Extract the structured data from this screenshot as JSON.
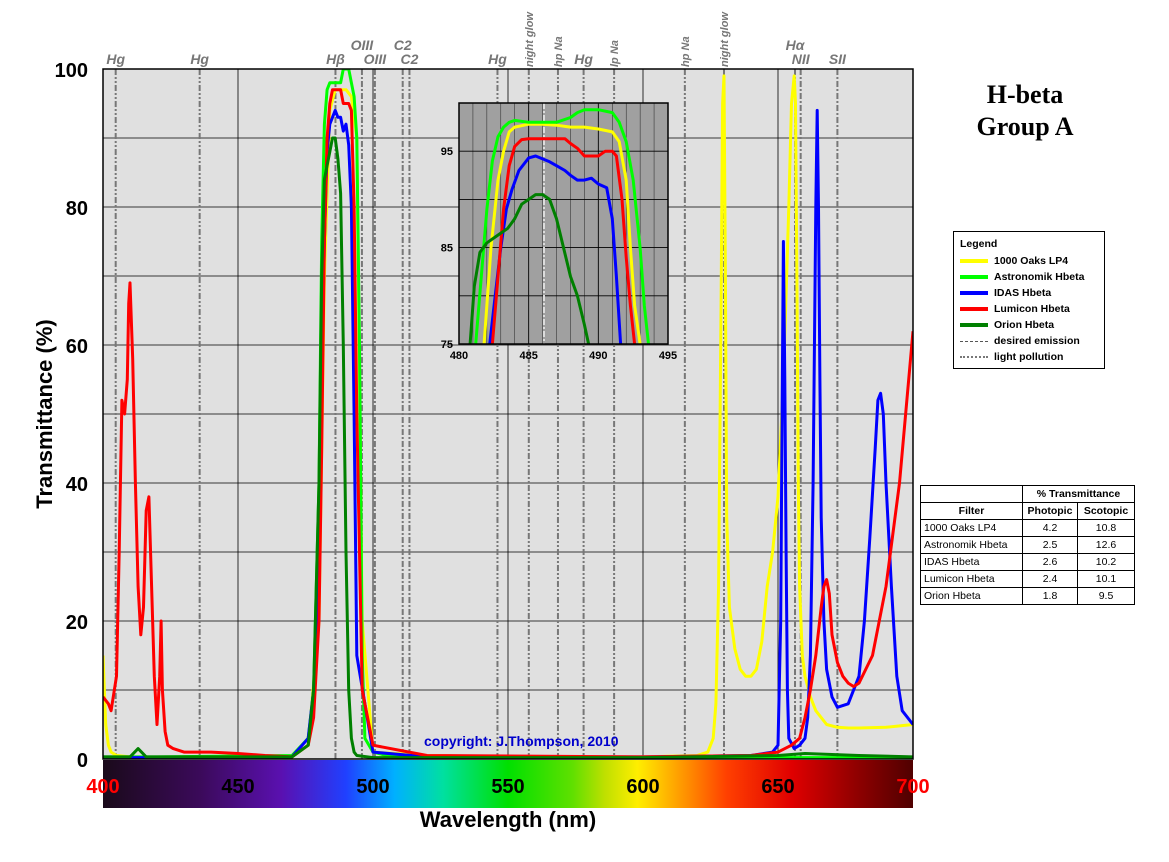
{
  "chart_data": [
    {
      "type": "line",
      "title": "H-beta Group A",
      "title_lines": [
        "H-beta",
        "Group A"
      ],
      "xlabel": "Wavelength (nm)",
      "ylabel": "Transmittance (%)",
      "xlim": [
        400,
        700
      ],
      "ylim": [
        0,
        100
      ],
      "x_ticks": [
        400,
        450,
        500,
        550,
        600,
        650,
        700
      ],
      "y_ticks": [
        0,
        20,
        40,
        60,
        80,
        100
      ],
      "grid": true,
      "annotation": "copyright: J.Thompson, 2010",
      "spectrum_bar": true,
      "emission_lines": [
        {
          "label": "Hg",
          "x": 404.7,
          "style": "light pollution"
        },
        {
          "label": "Hg",
          "x": 435.8,
          "style": "light pollution"
        },
        {
          "label": "Hβ",
          "x": 486.1,
          "style": "desired emission"
        },
        {
          "label": "OIII",
          "x": 495.9,
          "style": "desired emission"
        },
        {
          "label": "OIII",
          "x": 500.7,
          "style": "desired emission"
        },
        {
          "label": "C2",
          "x": 511.0,
          "style": "desired emission"
        },
        {
          "label": "C2",
          "x": 513.5,
          "style": "desired emission"
        },
        {
          "label": "Hg",
          "x": 546.1,
          "style": "light pollution"
        },
        {
          "label": "night glow",
          "x": 557.7,
          "style": "light pollution"
        },
        {
          "label": "hp Na",
          "x": 568.5,
          "style": "light pollution"
        },
        {
          "label": "Hg",
          "x": 578.0,
          "style": "light pollution"
        },
        {
          "label": "lp Na",
          "x": 589.3,
          "style": "light pollution"
        },
        {
          "label": "hp Na",
          "x": 615.5,
          "style": "light pollution"
        },
        {
          "label": "night glow",
          "x": 630.0,
          "style": "light pollution"
        },
        {
          "label": "Hα",
          "x": 656.3,
          "style": "desired emission"
        },
        {
          "label": "NII",
          "x": 658.4,
          "style": "desired emission"
        },
        {
          "label": "SII",
          "x": 672.0,
          "style": "desired emission"
        }
      ],
      "series": [
        {
          "name": "1000 Oaks LP4",
          "color": "#ffff00",
          "x": [
            400,
            401,
            402,
            403,
            405,
            410,
            430,
            470,
            476,
            480,
            482,
            484,
            486,
            488,
            490,
            492,
            494,
            496,
            500,
            520,
            560,
            600,
            620,
            624,
            626,
            627,
            628,
            629,
            629.5,
            630,
            630.5,
            631,
            632,
            634,
            636,
            638,
            640,
            642,
            644,
            646,
            648,
            650,
            652,
            654,
            655,
            656,
            656.5,
            657,
            657.5,
            658,
            659,
            660,
            662,
            664,
            666,
            668,
            672,
            676,
            680,
            690,
            700
          ],
          "y": [
            15,
            5,
            2,
            1,
            0.5,
            0.3,
            0.2,
            0.3,
            2,
            20,
            70,
            94,
            97,
            97,
            97,
            96,
            90,
            20,
            1,
            0.5,
            0.3,
            0.3,
            0.5,
            1,
            3,
            8,
            25,
            70,
            95,
            99,
            70,
            35,
            22,
            16,
            13,
            12,
            12,
            13,
            17,
            25,
            30,
            38,
            55,
            80,
            95,
            99,
            95,
            70,
            40,
            25,
            15,
            12,
            9,
            7,
            6,
            5,
            4.6,
            4.5,
            4.5,
            4.6,
            5
          ]
        },
        {
          "name": "Astronomik Hbeta",
          "color": "#00ff00",
          "x": [
            400,
            420,
            470,
            476,
            478,
            480,
            481,
            482,
            483,
            484,
            485,
            486,
            487,
            488,
            489,
            490,
            491,
            492,
            493,
            494,
            495,
            496,
            497,
            500,
            505,
            520,
            600,
            700
          ],
          "y": [
            0.3,
            0.3,
            0.5,
            3,
            10,
            40,
            75,
            92,
            97,
            98,
            98,
            98,
            98,
            98,
            100,
            100,
            100,
            98,
            96,
            90,
            60,
            15,
            3,
            1,
            0.5,
            0.3,
            0.2,
            0.2
          ]
        },
        {
          "name": "IDAS Hbeta",
          "color": "#0000ff",
          "x": [
            400,
            430,
            470,
            476,
            478,
            480,
            481,
            482,
            483,
            484,
            485,
            486,
            487,
            488,
            489,
            490,
            491,
            492,
            493,
            494,
            500,
            520,
            600,
            640,
            648,
            650,
            651,
            651.5,
            652,
            652.5,
            653,
            653.5,
            654,
            656,
            658,
            660,
            661,
            662,
            663,
            664,
            664.5,
            665,
            665.5,
            666,
            667,
            668,
            670,
            672,
            676,
            680,
            682,
            684,
            686,
            687,
            688,
            689,
            690,
            692,
            694,
            696,
            700
          ],
          "y": [
            0.2,
            0.2,
            0.3,
            3,
            10,
            30,
            55,
            75,
            88,
            92,
            93,
            94,
            93,
            93,
            91,
            92,
            89,
            80,
            50,
            15,
            1,
            0.3,
            0.3,
            0.5,
            1,
            2,
            20,
            50,
            75,
            55,
            30,
            10,
            3,
            1.5,
            2,
            3,
            6,
            15,
            40,
            80,
            94,
            80,
            55,
            35,
            20,
            13,
            9,
            7.5,
            8,
            12,
            20,
            32,
            45,
            52,
            53,
            50,
            40,
            25,
            12,
            7,
            5
          ]
        },
        {
          "name": "Lumicon Hbeta",
          "color": "#ff0000",
          "x": [
            400,
            402,
            403,
            405,
            406,
            407,
            408,
            409,
            409.5,
            410,
            411,
            412,
            413,
            414,
            415,
            416,
            417,
            418,
            419,
            420,
            421,
            421.5,
            422,
            423,
            424,
            426,
            430,
            440,
            450,
            460,
            470,
            476,
            478,
            480,
            481,
            482,
            483,
            484,
            485,
            486,
            487,
            488,
            489,
            490,
            491,
            492,
            493,
            494,
            496,
            500,
            520,
            600,
            640,
            650,
            655,
            658,
            660,
            662,
            664,
            666,
            667,
            668,
            669,
            670,
            672,
            674,
            676,
            678,
            680,
            685,
            690,
            695,
            700
          ],
          "y": [
            9,
            8,
            7,
            12,
            30,
            52,
            50,
            55,
            66,
            69,
            58,
            40,
            25,
            18,
            22,
            36,
            38,
            25,
            12,
            5,
            12,
            20,
            10,
            4,
            2,
            1.5,
            1,
            1,
            0.8,
            0.5,
            0.3,
            2,
            6,
            20,
            45,
            75,
            90,
            95,
            97,
            97,
            97,
            97,
            95,
            95,
            95,
            94,
            80,
            50,
            10,
            2,
            0.5,
            0.3,
            0.5,
            1,
            2,
            3,
            6,
            10,
            15,
            22,
            25,
            26,
            24,
            18,
            14,
            12,
            11,
            10.5,
            11,
            15,
            25,
            40,
            62
          ]
        },
        {
          "name": "Orion Hbeta",
          "color": "#008000",
          "x": [
            400,
            410,
            413,
            416,
            430,
            470,
            476,
            478,
            480,
            481,
            482,
            483,
            484,
            485,
            486,
            487,
            488,
            489,
            490,
            491,
            492,
            493,
            494,
            500,
            520,
            600,
            650,
            660,
            680,
            700
          ],
          "y": [
            0.3,
            0.3,
            1.5,
            0.3,
            0.3,
            0.3,
            2,
            10,
            40,
            70,
            84,
            86,
            88,
            90,
            90,
            87,
            82,
            60,
            30,
            10,
            3,
            1,
            0.5,
            0.2,
            0.2,
            0.2,
            0.5,
            0.8,
            0.5,
            0.3
          ]
        },
        {
          "name": "desired emission",
          "color": "#000000",
          "x": [],
          "y": []
        },
        {
          "name": "light pollution",
          "color": "#000000",
          "x": [],
          "y": []
        }
      ],
      "legend_title": "Legend",
      "legend_placement": "right"
    },
    {
      "type": "line",
      "title": "",
      "xlim": [
        480,
        495
      ],
      "ylim": [
        75,
        100
      ],
      "x_ticks": [
        480,
        485,
        490,
        495
      ],
      "y_ticks": [
        75,
        85,
        95
      ],
      "grid": true,
      "series": [
        {
          "name": "1000 Oaks LP4",
          "color": "#ffff00",
          "x": [
            481.8,
            482.3,
            482.8,
            483.2,
            483.6,
            484,
            485,
            486,
            487,
            488,
            489,
            490,
            491,
            491.5,
            492,
            492.3,
            492.6,
            493
          ],
          "y": [
            75,
            85,
            92,
            95,
            97,
            97.5,
            97.8,
            97.8,
            97.7,
            97.5,
            97.5,
            97.3,
            97,
            96,
            92,
            85,
            79,
            75
          ]
        },
        {
          "name": "Astronomik Hbeta",
          "color": "#00ff00",
          "x": [
            481.2,
            481.6,
            482,
            482.4,
            482.8,
            483.2,
            483.6,
            484,
            485,
            486,
            487,
            488,
            488.5,
            489,
            490,
            491,
            491.5,
            492,
            492.5,
            493,
            493.3,
            493.6
          ],
          "y": [
            75,
            82,
            89,
            94,
            96.5,
            97.5,
            98,
            98.2,
            98,
            98,
            98,
            98.5,
            99,
            99.3,
            99.3,
            99,
            98,
            96,
            92,
            85,
            79,
            75
          ]
        },
        {
          "name": "IDAS Hbeta",
          "color": "#0000ff",
          "x": [
            482.2,
            482.6,
            483,
            483.4,
            483.8,
            484.3,
            485,
            485.5,
            486,
            486.5,
            487,
            487.6,
            488,
            488.5,
            489,
            489.5,
            490,
            490.6,
            491,
            491.3,
            491.6
          ],
          "y": [
            75,
            80,
            85,
            89,
            91,
            93,
            94.3,
            94.5,
            94.2,
            93.9,
            93.5,
            93,
            92.5,
            92,
            92,
            92.2,
            91.6,
            91.2,
            88,
            82,
            75
          ]
        },
        {
          "name": "Lumicon Hbeta",
          "color": "#ff0000",
          "x": [
            482.4,
            482.8,
            483.2,
            483.6,
            484,
            484.5,
            485,
            486,
            487,
            487.6,
            488,
            488.5,
            489,
            489.5,
            490,
            490.5,
            491,
            491.3,
            491.7,
            492,
            492.3,
            492.6
          ],
          "y": [
            75,
            82,
            89,
            93.5,
            95.5,
            96.2,
            96.3,
            96.3,
            96.3,
            96.3,
            95.8,
            95.3,
            94.5,
            94.5,
            94.5,
            95,
            95,
            94.5,
            90,
            84,
            79,
            75
          ]
        },
        {
          "name": "Orion Hbeta",
          "color": "#008000",
          "x": [
            480.8,
            481.1,
            481.5,
            482,
            482.5,
            483,
            483.5,
            484,
            484.5,
            485,
            485.5,
            486,
            486.5,
            487,
            487.5,
            488,
            488.5,
            489,
            489.3
          ],
          "y": [
            75,
            81,
            84.5,
            85.5,
            86,
            86.5,
            87,
            88,
            89.5,
            90,
            90.5,
            90.5,
            90,
            88,
            85,
            82,
            80,
            77,
            75
          ]
        }
      ]
    }
  ],
  "legend": {
    "title": "Legend",
    "items": [
      {
        "label": "1000 Oaks LP4",
        "color": "#ffff00",
        "style": "solid"
      },
      {
        "label": "Astronomik Hbeta",
        "color": "#00ff00",
        "style": "solid"
      },
      {
        "label": "IDAS Hbeta",
        "color": "#0000ff",
        "style": "solid"
      },
      {
        "label": "Lumicon Hbeta",
        "color": "#ff0000",
        "style": "solid"
      },
      {
        "label": "Orion Hbeta",
        "color": "#008000",
        "style": "solid"
      },
      {
        "label": "desired emission",
        "color": "#555555",
        "style": "dash-dot"
      },
      {
        "label": "light pollution",
        "color": "#777777",
        "style": "dash-dot-dot"
      }
    ]
  },
  "table": {
    "group_header": "% Transmittance",
    "col_headers": [
      "Filter",
      "Photopic",
      "Scotopic"
    ],
    "rows": [
      [
        "1000 Oaks LP4",
        "4.2",
        "10.8"
      ],
      [
        "Astronomik Hbeta",
        "2.5",
        "12.6"
      ],
      [
        "IDAS Hbeta",
        "2.6",
        "10.2"
      ],
      [
        "Lumicon Hbeta",
        "2.4",
        "10.1"
      ],
      [
        "Orion Hbeta",
        "1.8",
        "9.5"
      ]
    ]
  }
}
